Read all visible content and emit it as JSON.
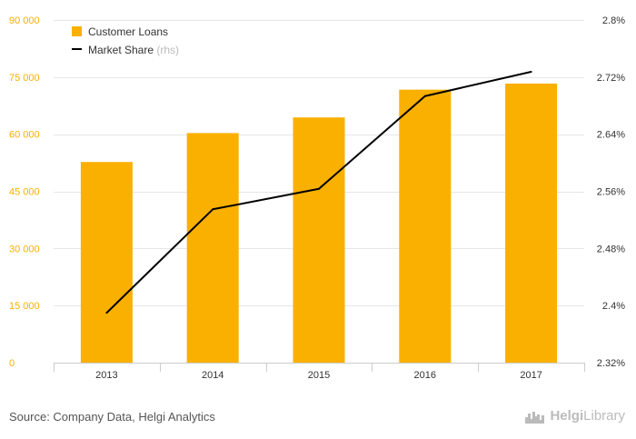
{
  "source_text": "Source: Company Data, Helgi Analytics",
  "logo": {
    "name_bold": "Helgi",
    "name_rest": "Library",
    "icon": "city-skyline-icon"
  },
  "colors": {
    "bars": "#f9b000",
    "line": "#000000",
    "left_axis_text": "#f9b000",
    "right_axis_text": "#333333",
    "grid": "#e6e6e6",
    "legend_hint": "#bbbbbb"
  },
  "chart_data": {
    "type": "bar",
    "categories": [
      "2013",
      "2014",
      "2015",
      "2016",
      "2017"
    ],
    "series": [
      {
        "name": "Customer Loans",
        "type": "bar",
        "axis": "left",
        "values": [
          52700,
          60300,
          64400,
          71700,
          73300
        ]
      },
      {
        "name": "Market Share",
        "name_suffix": "(rhs)",
        "type": "line",
        "axis": "right",
        "values": [
          2.3898,
          2.5348,
          2.5635,
          2.6934,
          2.7274
        ]
      }
    ],
    "y_left": {
      "range": [
        0,
        90000
      ],
      "ticks": [
        0,
        15000,
        30000,
        45000,
        60000,
        75000,
        90000
      ],
      "tick_labels": [
        "0",
        "15 000",
        "30 000",
        "45 000",
        "60 000",
        "75 000",
        "90 000"
      ]
    },
    "y_right": {
      "range": [
        2.32,
        2.8
      ],
      "ticks": [
        2.32,
        2.4,
        2.48,
        2.56,
        2.64,
        2.72,
        2.8
      ],
      "tick_labels": [
        "2.32%",
        "2.4%",
        "2.48%",
        "2.56%",
        "2.64%",
        "2.72%",
        "2.8%"
      ]
    },
    "grid": true,
    "legend": "top-left"
  }
}
